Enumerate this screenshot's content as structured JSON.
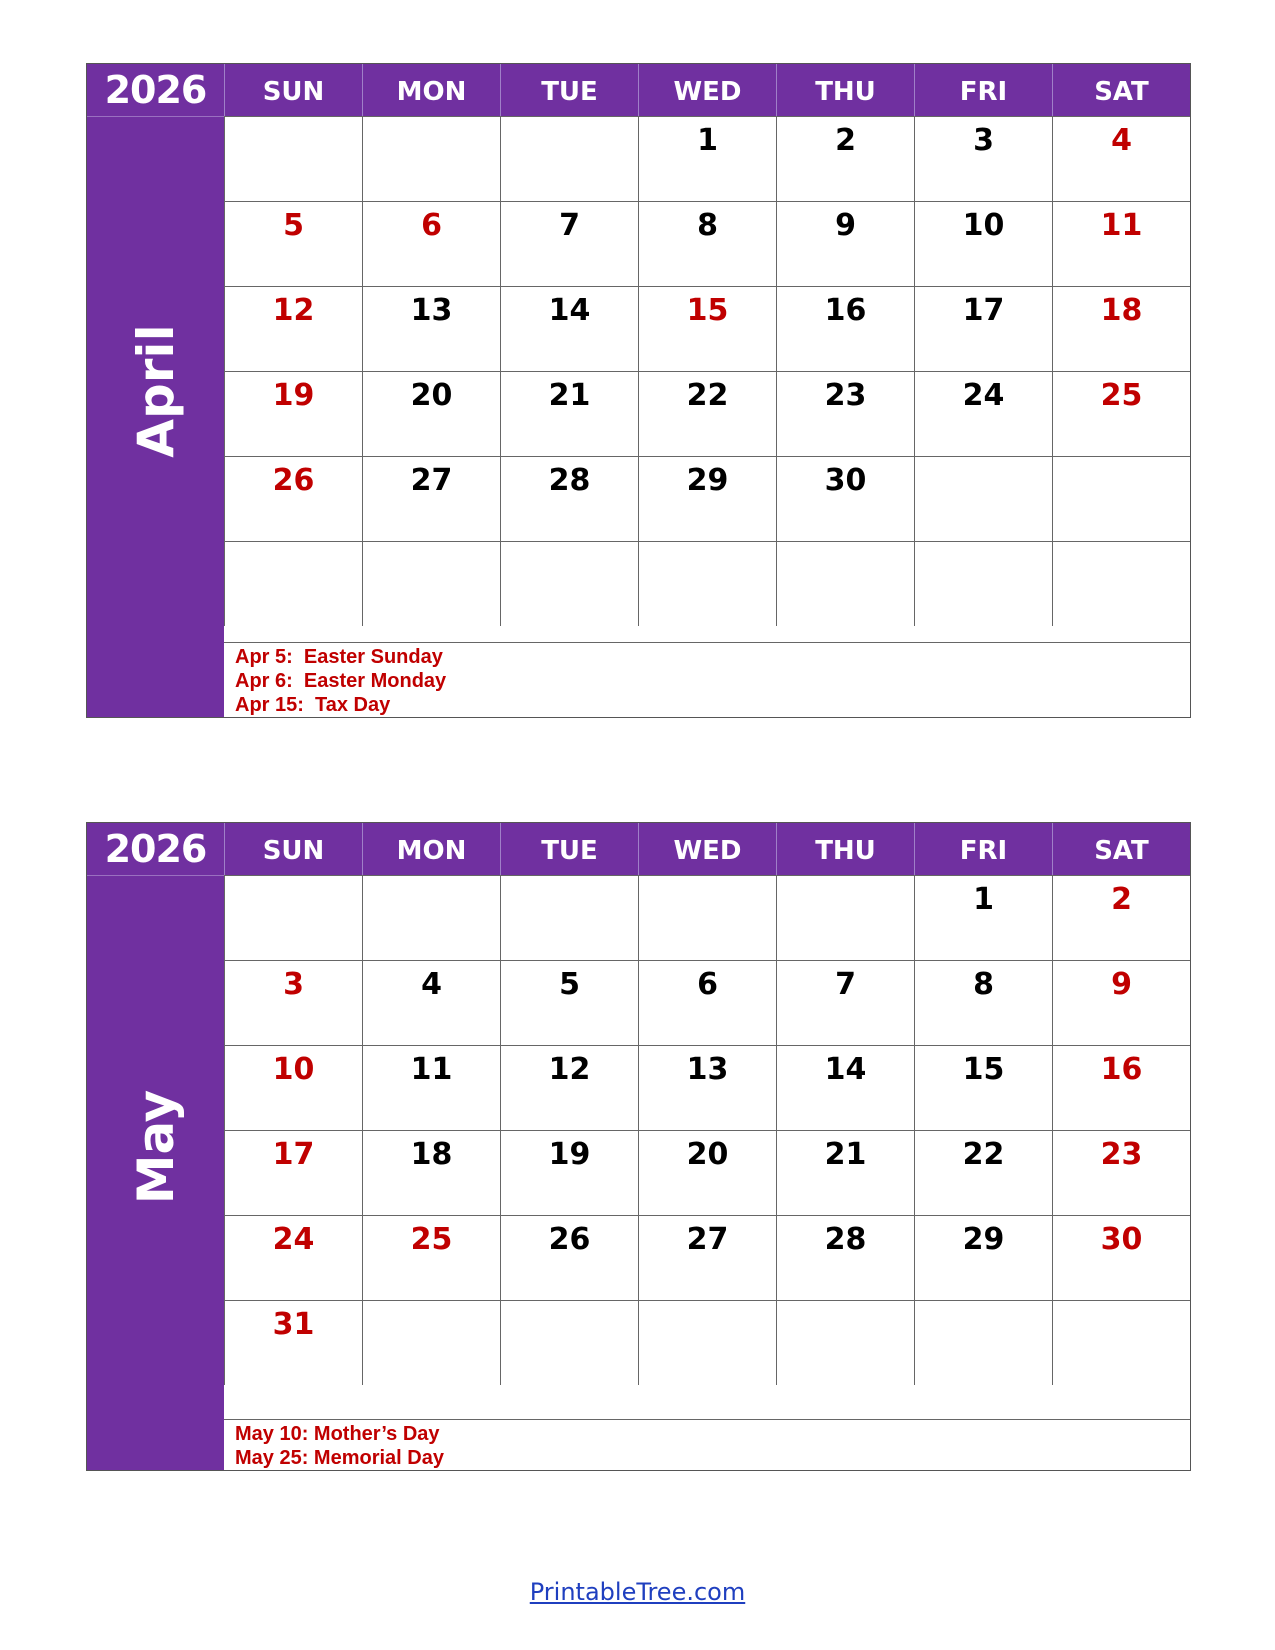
{
  "colors": {
    "header": "#7030a0",
    "holiday": "#c00000",
    "text": "#000000"
  },
  "weekdays": [
    "SUN",
    "MON",
    "TUE",
    "WED",
    "THU",
    "FRI",
    "SAT"
  ],
  "calendars": [
    {
      "id": "april",
      "year": "2026",
      "month": "April",
      "weeks": [
        [
          "",
          "",
          "",
          "1",
          "2",
          "3",
          "4"
        ],
        [
          "5",
          "6",
          "7",
          "8",
          "9",
          "10",
          "11"
        ],
        [
          "12",
          "13",
          "14",
          "15",
          "16",
          "17",
          "18"
        ],
        [
          "19",
          "20",
          "21",
          "22",
          "23",
          "24",
          "25"
        ],
        [
          "26",
          "27",
          "28",
          "29",
          "30",
          "",
          ""
        ],
        [
          "",
          "",
          "",
          "",
          "",
          "",
          ""
        ]
      ],
      "red_days": [
        "4",
        "5",
        "6",
        "11",
        "12",
        "15",
        "18",
        "19",
        "25",
        "26"
      ],
      "notes": [
        "Apr 5:  Easter Sunday",
        "Apr 6:  Easter Monday",
        "Apr 15:  Tax Day"
      ]
    },
    {
      "id": "may",
      "year": "2026",
      "month": "May",
      "weeks": [
        [
          "",
          "",
          "",
          "",
          "",
          "1",
          "2"
        ],
        [
          "3",
          "4",
          "5",
          "6",
          "7",
          "8",
          "9"
        ],
        [
          "10",
          "11",
          "12",
          "13",
          "14",
          "15",
          "16"
        ],
        [
          "17",
          "18",
          "19",
          "20",
          "21",
          "22",
          "23"
        ],
        [
          "24",
          "25",
          "26",
          "27",
          "28",
          "29",
          "30"
        ],
        [
          "31",
          "",
          "",
          "",
          "",
          "",
          ""
        ]
      ],
      "red_days": [
        "2",
        "3",
        "9",
        "10",
        "16",
        "17",
        "23",
        "24",
        "25",
        "30",
        "31"
      ],
      "notes": [
        "May 10: Mother’s Day",
        "May 25: Memorial Day"
      ]
    }
  ],
  "footer": {
    "link": "PrintableTree.com"
  }
}
